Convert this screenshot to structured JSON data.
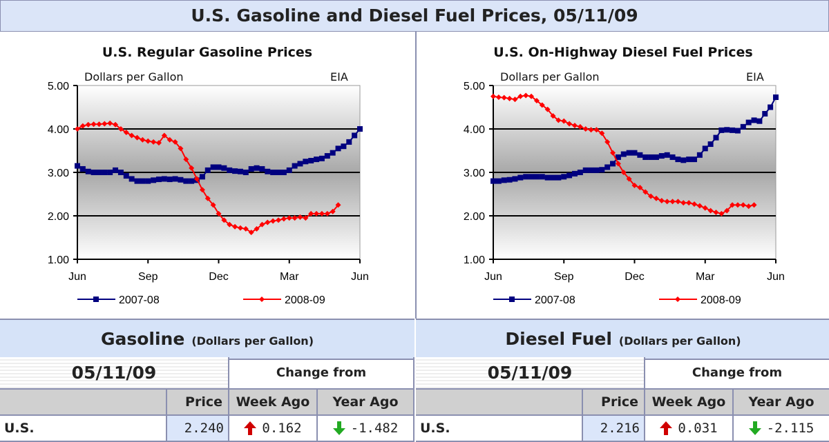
{
  "title": "U.S. Gasoline and Diesel Fuel Prices, 05/11/09",
  "chart_data": [
    {
      "type": "line",
      "title": "U.S. Regular Gasoline Prices",
      "ylabel": "Dollars per Gallon",
      "source": "EIA",
      "ylim": [
        1,
        5
      ],
      "yticks": [
        "5.00",
        "4.00",
        "3.00",
        "2.00",
        "1.00"
      ],
      "xticks": [
        "Jun",
        "Sep",
        "Dec",
        "Mar",
        "Jun"
      ],
      "grid": "horizontal",
      "legend": "bottom",
      "series": [
        {
          "name": "2007-08",
          "color": "#00007f",
          "marker": "square",
          "values": [
            3.15,
            3.08,
            3.02,
            3.0,
            3.0,
            3.0,
            3.0,
            3.05,
            3.0,
            2.92,
            2.85,
            2.8,
            2.8,
            2.8,
            2.82,
            2.84,
            2.85,
            2.84,
            2.85,
            2.83,
            2.8,
            2.8,
            2.82,
            2.9,
            3.05,
            3.12,
            3.12,
            3.1,
            3.05,
            3.03,
            3.02,
            3.0,
            3.08,
            3.1,
            3.08,
            3.02,
            3.0,
            3.0,
            3.0,
            3.05,
            3.15,
            3.2,
            3.25,
            3.27,
            3.3,
            3.32,
            3.38,
            3.45,
            3.55,
            3.6,
            3.7,
            3.85,
            4.0
          ]
        },
        {
          "name": "2008-09",
          "color": "#ff0000",
          "marker": "diamond",
          "values": [
            4.0,
            4.07,
            4.1,
            4.11,
            4.11,
            4.12,
            4.13,
            4.1,
            4.0,
            3.92,
            3.85,
            3.8,
            3.75,
            3.72,
            3.7,
            3.68,
            3.85,
            3.75,
            3.7,
            3.55,
            3.3,
            3.1,
            2.85,
            2.6,
            2.4,
            2.25,
            2.05,
            1.9,
            1.8,
            1.75,
            1.72,
            1.7,
            1.62,
            1.7,
            1.8,
            1.85,
            1.88,
            1.9,
            1.93,
            1.95,
            1.95,
            1.97,
            1.95,
            2.05,
            2.05,
            2.05,
            2.05,
            2.1,
            2.25
          ]
        }
      ]
    },
    {
      "type": "line",
      "title": "U.S. On-Highway Diesel Fuel Prices",
      "ylabel": "Dollars per Gallon",
      "source": "EIA",
      "ylim": [
        1,
        5
      ],
      "yticks": [
        "5.00",
        "4.00",
        "3.00",
        "2.00",
        "1.00"
      ],
      "xticks": [
        "Jun",
        "Sep",
        "Dec",
        "Mar",
        "Jun"
      ],
      "grid": "horizontal",
      "legend": "bottom",
      "series": [
        {
          "name": "2007-08",
          "color": "#00007f",
          "marker": "square",
          "values": [
            2.8,
            2.8,
            2.82,
            2.83,
            2.85,
            2.88,
            2.9,
            2.9,
            2.9,
            2.9,
            2.88,
            2.88,
            2.88,
            2.9,
            2.93,
            2.97,
            3.0,
            3.05,
            3.05,
            3.05,
            3.06,
            3.12,
            3.2,
            3.35,
            3.42,
            3.45,
            3.45,
            3.4,
            3.35,
            3.35,
            3.35,
            3.38,
            3.4,
            3.35,
            3.3,
            3.28,
            3.3,
            3.3,
            3.4,
            3.55,
            3.65,
            3.8,
            3.97,
            3.98,
            3.97,
            3.96,
            4.05,
            4.15,
            4.2,
            4.18,
            4.35,
            4.5,
            4.73
          ]
        },
        {
          "name": "2008-09",
          "color": "#ff0000",
          "marker": "diamond",
          "values": [
            4.75,
            4.73,
            4.72,
            4.7,
            4.68,
            4.75,
            4.77,
            4.75,
            4.65,
            4.55,
            4.45,
            4.3,
            4.2,
            4.18,
            4.12,
            4.08,
            4.05,
            4.0,
            3.98,
            3.98,
            3.9,
            3.7,
            3.45,
            3.2,
            3.0,
            2.85,
            2.7,
            2.65,
            2.55,
            2.45,
            2.4,
            2.35,
            2.33,
            2.33,
            2.33,
            2.3,
            2.3,
            2.27,
            2.23,
            2.18,
            2.12,
            2.08,
            2.05,
            2.12,
            2.25,
            2.25,
            2.25,
            2.22,
            2.25
          ]
        }
      ]
    }
  ],
  "tables": [
    {
      "heading": "Gasoline",
      "unit": "(Dollars per Gallon)",
      "date": "05/11/09",
      "change_from": "Change from",
      "cols": [
        "Price",
        "Week Ago",
        "Year Ago"
      ],
      "row": {
        "label": "U.S.",
        "price": "2.240",
        "week": "0.162",
        "year": "-1.482",
        "week_dir": "up",
        "year_dir": "down"
      }
    },
    {
      "heading": "Diesel Fuel",
      "unit": "(Dollars per Gallon)",
      "date": "05/11/09",
      "change_from": "Change from",
      "cols": [
        "Price",
        "Week Ago",
        "Year Ago"
      ],
      "row": {
        "label": "U.S.",
        "price": "2.216",
        "week": "0.031",
        "year": "-2.115",
        "week_dir": "up",
        "year_dir": "down"
      }
    }
  ]
}
